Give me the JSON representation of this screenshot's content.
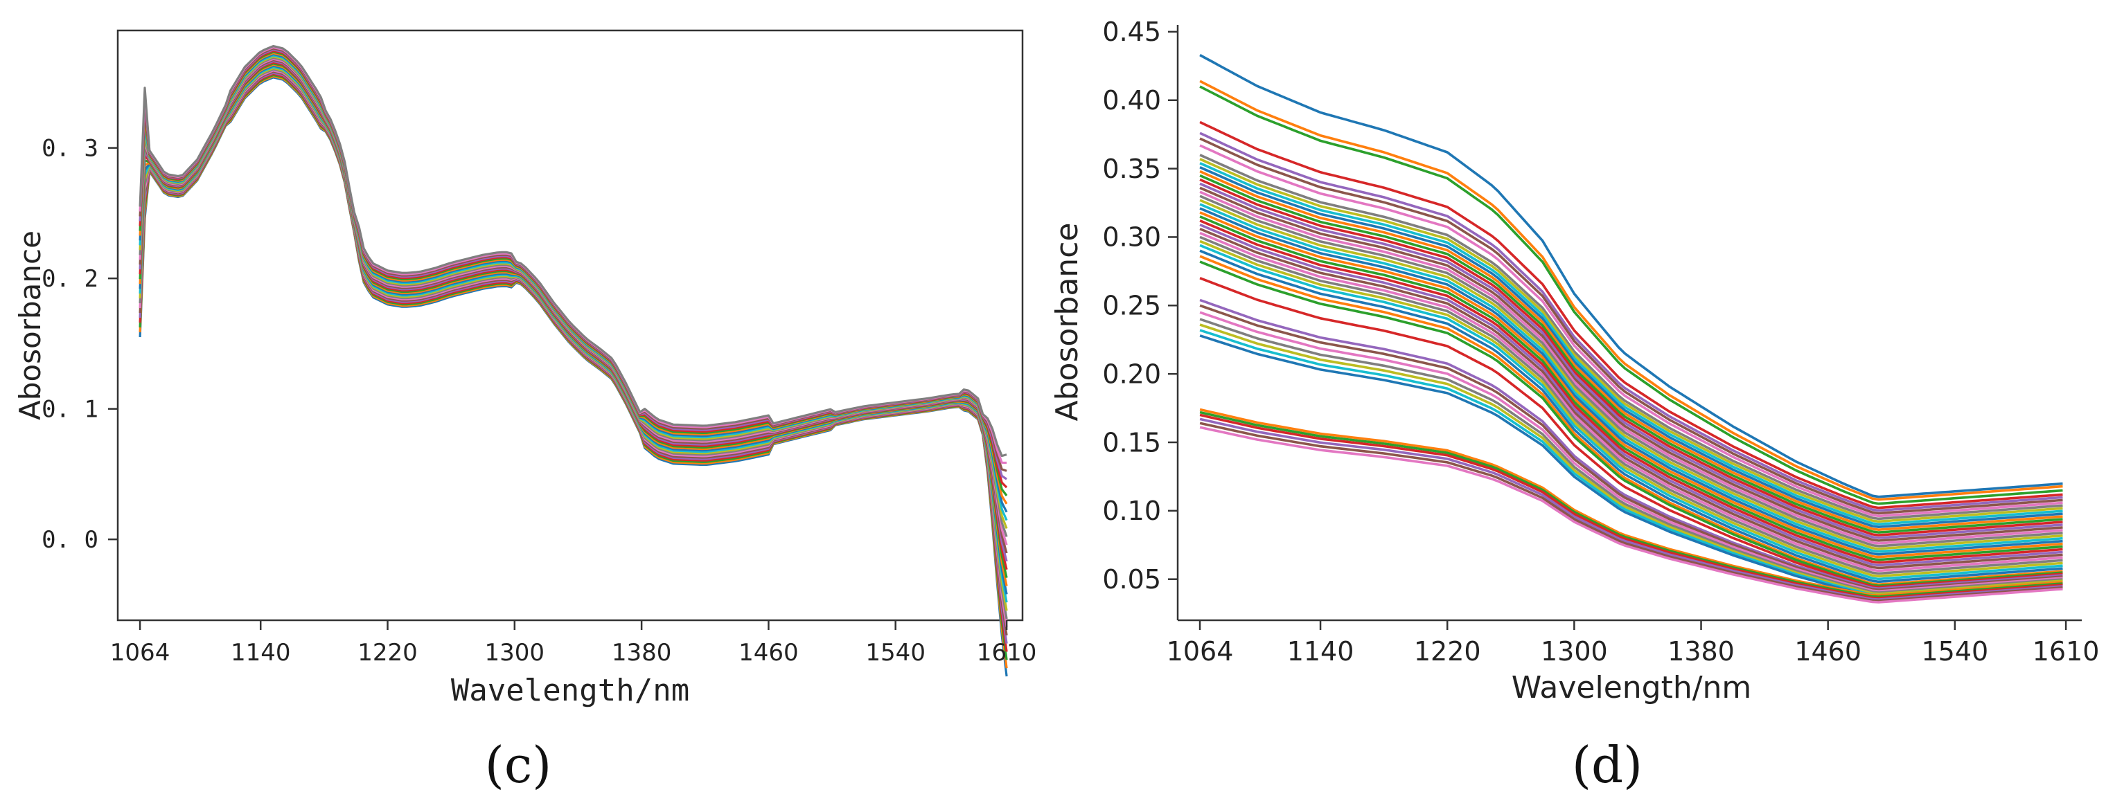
{
  "chart_data": [
    {
      "type": "line",
      "panel_label": "(c)",
      "xlabel": "Wavelength/nm",
      "ylabel": "Abosorbance",
      "xlim": [
        1050,
        1620
      ],
      "ylim": [
        -0.062,
        0.39
      ],
      "x_ticks": [
        1064,
        1140,
        1220,
        1300,
        1380,
        1460,
        1540,
        1610
      ],
      "x_tick_labels": [
        "1064",
        "1140",
        "1220",
        "1300",
        "1380",
        "1460",
        "1540",
        "1610"
      ],
      "y_ticks": [
        0.0,
        0.1,
        0.2,
        0.3
      ],
      "y_tick_labels": [
        "0. 0",
        "0. 1",
        "0. 2",
        "0. 3"
      ],
      "base_curve": {
        "x": [
          1064,
          1066,
          1070,
          1080,
          1090,
          1100,
          1110,
          1120,
          1130,
          1140,
          1148,
          1155,
          1165,
          1175,
          1185,
          1192,
          1198,
          1205,
          1210,
          1220,
          1230,
          1240,
          1250,
          1260,
          1270,
          1280,
          1290,
          1296,
          1305,
          1315,
          1325,
          1335,
          1345,
          1355,
          1362,
          1370,
          1380,
          1390,
          1400,
          1420,
          1440,
          1460,
          1480,
          1500,
          1520,
          1540,
          1560,
          1575,
          1585,
          1592,
          1597,
          1602,
          1606,
          1610
        ],
        "y": [
          0.205,
          0.298,
          0.29,
          0.272,
          0.27,
          0.283,
          0.305,
          0.33,
          0.35,
          0.362,
          0.366,
          0.364,
          0.352,
          0.333,
          0.312,
          0.288,
          0.248,
          0.21,
          0.199,
          0.193,
          0.191,
          0.192,
          0.195,
          0.199,
          0.202,
          0.205,
          0.207,
          0.207,
          0.203,
          0.19,
          0.173,
          0.158,
          0.146,
          0.137,
          0.13,
          0.112,
          0.087,
          0.077,
          0.073,
          0.072,
          0.075,
          0.08,
          0.086,
          0.092,
          0.097,
          0.1,
          0.103,
          0.106,
          0.107,
          0.1,
          0.08,
          0.04,
          0.0,
          -0.02
        ]
      },
      "series_count": 28,
      "colors": [
        "#1f77b4",
        "#ff7f0e",
        "#2ca02c",
        "#d62728",
        "#9467bd",
        "#8c564b",
        "#e377c2",
        "#7f7f7f",
        "#bcbd22",
        "#17becf"
      ]
    },
    {
      "type": "line",
      "panel_label": "(d)",
      "xlabel": "Wavelength/nm",
      "ylabel": "Abosorbance",
      "xlim": [
        1050,
        1620
      ],
      "ylim": [
        0.02,
        0.455
      ],
      "x_ticks": [
        1064,
        1140,
        1220,
        1300,
        1380,
        1460,
        1540,
        1610
      ],
      "x_tick_labels": [
        "1064",
        "1140",
        "1220",
        "1300",
        "1380",
        "1460",
        "1540",
        "1610"
      ],
      "y_ticks": [
        0.05,
        0.1,
        0.15,
        0.2,
        0.25,
        0.3,
        0.35,
        0.4,
        0.45
      ],
      "y_tick_labels": [
        "0.05",
        "0.10",
        "0.15",
        "0.20",
        "0.25",
        "0.30",
        "0.35",
        "0.40",
        "0.45"
      ],
      "start_values": [
        0.433,
        0.414,
        0.41,
        0.384,
        0.376,
        0.372,
        0.367,
        0.36,
        0.357,
        0.354,
        0.351,
        0.348,
        0.345,
        0.342,
        0.339,
        0.336,
        0.333,
        0.33,
        0.327,
        0.324,
        0.321,
        0.318,
        0.315,
        0.312,
        0.309,
        0.306,
        0.303,
        0.3,
        0.297,
        0.294,
        0.29,
        0.286,
        0.282,
        0.27,
        0.254,
        0.25,
        0.245,
        0.24,
        0.236,
        0.232,
        0.228,
        0.174,
        0.172,
        0.17,
        0.167,
        0.164,
        0.161
      ],
      "end_values": [
        0.12,
        0.118,
        0.115,
        0.112,
        0.11,
        0.108,
        0.106,
        0.104,
        0.102,
        0.1,
        0.098,
        0.096,
        0.094,
        0.092,
        0.09,
        0.088,
        0.086,
        0.084,
        0.082,
        0.08,
        0.078,
        0.076,
        0.074,
        0.072,
        0.07,
        0.068,
        0.066,
        0.064,
        0.062,
        0.06,
        0.058,
        0.056,
        0.055,
        0.054,
        0.053,
        0.052,
        0.051,
        0.05,
        0.049,
        0.048,
        0.047,
        0.048,
        0.047,
        0.046,
        0.045,
        0.044,
        0.043
      ],
      "colors": [
        "#1f77b4",
        "#ff7f0e",
        "#2ca02c",
        "#d62728",
        "#9467bd",
        "#8c564b",
        "#e377c2",
        "#7f7f7f",
        "#bcbd22",
        "#17becf"
      ]
    }
  ]
}
